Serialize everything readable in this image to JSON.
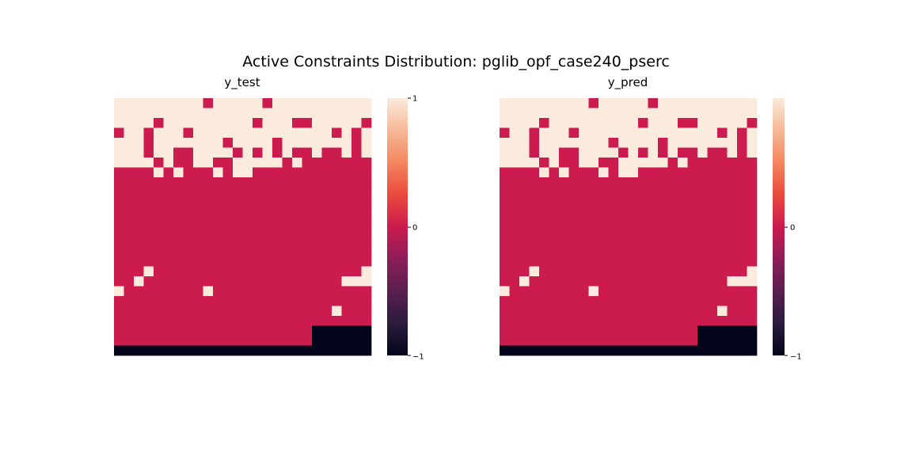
{
  "figure": {
    "title": "Active Constraints Distribution: pglib_opf_case240_pserc"
  },
  "chart_data": [
    {
      "type": "heatmap",
      "title": "y_test",
      "xlabel": "",
      "ylabel": "",
      "value_range": [
        -1,
        1
      ],
      "colorbar_ticks": [
        "1",
        "0",
        "−1"
      ],
      "colormap": "rocket",
      "grid": [
        [
          1,
          1,
          1,
          1,
          1,
          1,
          1,
          1,
          1,
          0,
          1,
          1,
          1,
          1,
          1,
          0,
          1,
          1,
          1,
          1,
          1,
          1,
          1,
          1,
          1,
          1
        ],
        [
          1,
          1,
          1,
          1,
          1,
          1,
          1,
          1,
          1,
          1,
          1,
          1,
          1,
          1,
          1,
          1,
          1,
          1,
          1,
          1,
          1,
          1,
          1,
          1,
          1,
          1
        ],
        [
          1,
          1,
          1,
          1,
          0,
          1,
          1,
          1,
          1,
          1,
          1,
          1,
          1,
          1,
          0,
          1,
          1,
          1,
          0,
          0,
          1,
          1,
          1,
          1,
          1,
          0
        ],
        [
          0,
          1,
          1,
          0,
          1,
          1,
          1,
          0,
          1,
          1,
          1,
          1,
          1,
          1,
          1,
          1,
          1,
          1,
          1,
          1,
          1,
          1,
          0,
          1,
          0,
          1
        ],
        [
          1,
          1,
          1,
          0,
          1,
          1,
          1,
          1,
          1,
          1,
          1,
          0,
          1,
          1,
          1,
          1,
          0,
          1,
          1,
          1,
          1,
          1,
          1,
          1,
          0,
          1
        ],
        [
          1,
          1,
          1,
          0,
          1,
          1,
          0,
          0,
          1,
          1,
          1,
          1,
          0,
          1,
          0,
          1,
          0,
          1,
          0,
          0,
          1,
          0,
          0,
          1,
          0,
          1
        ],
        [
          1,
          1,
          1,
          1,
          0,
          1,
          0,
          0,
          1,
          1,
          0,
          0,
          1,
          1,
          1,
          1,
          1,
          0,
          1,
          0,
          0,
          0,
          0,
          0,
          0,
          0
        ],
        [
          0,
          0,
          0,
          0,
          1,
          0,
          1,
          0,
          0,
          0,
          1,
          0,
          1,
          1,
          0,
          0,
          0,
          0,
          0,
          0,
          0,
          0,
          0,
          0,
          0,
          0
        ],
        [
          0,
          0,
          0,
          0,
          0,
          0,
          0,
          0,
          0,
          0,
          0,
          0,
          0,
          0,
          0,
          0,
          0,
          0,
          0,
          0,
          0,
          0,
          0,
          0,
          0,
          0
        ],
        [
          0,
          0,
          0,
          0,
          0,
          0,
          0,
          0,
          0,
          0,
          0,
          0,
          0,
          0,
          0,
          0,
          0,
          0,
          0,
          0,
          0,
          0,
          0,
          0,
          0,
          0
        ],
        [
          0,
          0,
          0,
          0,
          0,
          0,
          0,
          0,
          0,
          0,
          0,
          0,
          0,
          0,
          0,
          0,
          0,
          0,
          0,
          0,
          0,
          0,
          0,
          0,
          0,
          0
        ],
        [
          0,
          0,
          0,
          0,
          0,
          0,
          0,
          0,
          0,
          0,
          0,
          0,
          0,
          0,
          0,
          0,
          0,
          0,
          0,
          0,
          0,
          0,
          0,
          0,
          0,
          0
        ],
        [
          0,
          0,
          0,
          0,
          0,
          0,
          0,
          0,
          0,
          0,
          0,
          0,
          0,
          0,
          0,
          0,
          0,
          0,
          0,
          0,
          0,
          0,
          0,
          0,
          0,
          0
        ],
        [
          0,
          0,
          0,
          0,
          0,
          0,
          0,
          0,
          0,
          0,
          0,
          0,
          0,
          0,
          0,
          0,
          0,
          0,
          0,
          0,
          0,
          0,
          0,
          0,
          0,
          0
        ],
        [
          0,
          0,
          0,
          0,
          0,
          0,
          0,
          0,
          0,
          0,
          0,
          0,
          0,
          0,
          0,
          0,
          0,
          0,
          0,
          0,
          0,
          0,
          0,
          0,
          0,
          0
        ],
        [
          0,
          0,
          0,
          0,
          0,
          0,
          0,
          0,
          0,
          0,
          0,
          0,
          0,
          0,
          0,
          0,
          0,
          0,
          0,
          0,
          0,
          0,
          0,
          0,
          0,
          0
        ],
        [
          0,
          0,
          0,
          0,
          0,
          0,
          0,
          0,
          0,
          0,
          0,
          0,
          0,
          0,
          0,
          0,
          0,
          0,
          0,
          0,
          0,
          0,
          0,
          0,
          0,
          0
        ],
        [
          0,
          0,
          0,
          1,
          0,
          0,
          0,
          0,
          0,
          0,
          0,
          0,
          0,
          0,
          0,
          0,
          0,
          0,
          0,
          0,
          0,
          0,
          0,
          0,
          0,
          1
        ],
        [
          0,
          0,
          1,
          0,
          0,
          0,
          0,
          0,
          0,
          0,
          0,
          0,
          0,
          0,
          0,
          0,
          0,
          0,
          0,
          0,
          0,
          0,
          0,
          1,
          1,
          1
        ],
        [
          1,
          0,
          0,
          0,
          0,
          0,
          0,
          0,
          0,
          1,
          0,
          0,
          0,
          0,
          0,
          0,
          0,
          0,
          0,
          0,
          0,
          0,
          0,
          0,
          0,
          0
        ],
        [
          0,
          0,
          0,
          0,
          0,
          0,
          0,
          0,
          0,
          0,
          0,
          0,
          0,
          0,
          0,
          0,
          0,
          0,
          0,
          0,
          0,
          0,
          0,
          0,
          0,
          0
        ],
        [
          0,
          0,
          0,
          0,
          0,
          0,
          0,
          0,
          0,
          0,
          0,
          0,
          0,
          0,
          0,
          0,
          0,
          0,
          0,
          0,
          0,
          0,
          1,
          0,
          0,
          0
        ],
        [
          0,
          0,
          0,
          0,
          0,
          0,
          0,
          0,
          0,
          0,
          0,
          0,
          0,
          0,
          0,
          0,
          0,
          0,
          0,
          0,
          0,
          0,
          0,
          0,
          0,
          0
        ],
        [
          0,
          0,
          0,
          0,
          0,
          0,
          0,
          0,
          0,
          0,
          0,
          0,
          0,
          0,
          0,
          0,
          0,
          0,
          0,
          0,
          -1,
          -1,
          -1,
          -1,
          -1,
          -1
        ],
        [
          0,
          0,
          0,
          0,
          0,
          0,
          0,
          0,
          0,
          0,
          0,
          0,
          0,
          0,
          0,
          0,
          0,
          0,
          0,
          0,
          -1,
          -1,
          -1,
          -1,
          -1,
          -1
        ],
        [
          -1,
          -1,
          -1,
          -1,
          -1,
          -1,
          -1,
          -1,
          -1,
          -1,
          -1,
          -1,
          -1,
          -1,
          -1,
          -1,
          -1,
          -1,
          -1,
          -1,
          -1,
          -1,
          -1,
          -1,
          -1,
          -1
        ]
      ]
    },
    {
      "type": "heatmap",
      "title": "y_pred",
      "xlabel": "",
      "ylabel": "",
      "value_range": [
        -1,
        1
      ],
      "colorbar_ticks": [
        "0",
        "−1"
      ],
      "colormap": "rocket",
      "grid": [
        [
          1,
          1,
          1,
          1,
          1,
          1,
          1,
          1,
          1,
          0,
          1,
          1,
          1,
          1,
          1,
          0,
          1,
          1,
          1,
          1,
          1,
          1,
          1,
          1,
          1,
          1
        ],
        [
          1,
          1,
          1,
          1,
          1,
          1,
          1,
          1,
          1,
          1,
          1,
          1,
          1,
          1,
          1,
          1,
          1,
          1,
          1,
          1,
          1,
          1,
          1,
          1,
          1,
          1
        ],
        [
          1,
          1,
          1,
          1,
          0,
          1,
          1,
          1,
          1,
          1,
          1,
          1,
          1,
          1,
          0,
          1,
          1,
          1,
          0,
          0,
          1,
          1,
          1,
          1,
          1,
          0
        ],
        [
          0,
          1,
          1,
          0,
          1,
          1,
          1,
          0,
          1,
          1,
          1,
          1,
          1,
          1,
          1,
          1,
          1,
          1,
          1,
          1,
          1,
          1,
          0,
          1,
          0,
          1
        ],
        [
          1,
          1,
          1,
          0,
          1,
          1,
          1,
          1,
          1,
          1,
          1,
          0,
          1,
          1,
          1,
          1,
          0,
          1,
          1,
          1,
          1,
          1,
          1,
          1,
          0,
          1
        ],
        [
          1,
          1,
          1,
          0,
          1,
          1,
          0,
          0,
          1,
          1,
          1,
          1,
          0,
          1,
          0,
          1,
          0,
          1,
          0,
          0,
          1,
          0,
          0,
          1,
          0,
          1
        ],
        [
          1,
          1,
          1,
          1,
          0,
          1,
          0,
          0,
          1,
          1,
          0,
          0,
          1,
          1,
          1,
          1,
          1,
          0,
          1,
          0,
          0,
          0,
          0,
          0,
          0,
          0
        ],
        [
          0,
          0,
          0,
          0,
          1,
          0,
          1,
          0,
          0,
          0,
          1,
          0,
          1,
          1,
          0,
          0,
          0,
          0,
          0,
          0,
          0,
          0,
          0,
          0,
          0,
          0
        ],
        [
          0,
          0,
          0,
          0,
          0,
          0,
          0,
          0,
          0,
          0,
          0,
          0,
          0,
          0,
          0,
          0,
          0,
          0,
          0,
          0,
          0,
          0,
          0,
          0,
          0,
          0
        ],
        [
          0,
          0,
          0,
          0,
          0,
          0,
          0,
          0,
          0,
          0,
          0,
          0,
          0,
          0,
          0,
          0,
          0,
          0,
          0,
          0,
          0,
          0,
          0,
          0,
          0,
          0
        ],
        [
          0,
          0,
          0,
          0,
          0,
          0,
          0,
          0,
          0,
          0,
          0,
          0,
          0,
          0,
          0,
          0,
          0,
          0,
          0,
          0,
          0,
          0,
          0,
          0,
          0,
          0
        ],
        [
          0,
          0,
          0,
          0,
          0,
          0,
          0,
          0,
          0,
          0,
          0,
          0,
          0,
          0,
          0,
          0,
          0,
          0,
          0,
          0,
          0,
          0,
          0,
          0,
          0,
          0
        ],
        [
          0,
          0,
          0,
          0,
          0,
          0,
          0,
          0,
          0,
          0,
          0,
          0,
          0,
          0,
          0,
          0,
          0,
          0,
          0,
          0,
          0,
          0,
          0,
          0,
          0,
          0
        ],
        [
          0,
          0,
          0,
          0,
          0,
          0,
          0,
          0,
          0,
          0,
          0,
          0,
          0,
          0,
          0,
          0,
          0,
          0,
          0,
          0,
          0,
          0,
          0,
          0,
          0,
          0
        ],
        [
          0,
          0,
          0,
          0,
          0,
          0,
          0,
          0,
          0,
          0,
          0,
          0,
          0,
          0,
          0,
          0,
          0,
          0,
          0,
          0,
          0,
          0,
          0,
          0,
          0,
          0
        ],
        [
          0,
          0,
          0,
          0,
          0,
          0,
          0,
          0,
          0,
          0,
          0,
          0,
          0,
          0,
          0,
          0,
          0,
          0,
          0,
          0,
          0,
          0,
          0,
          0,
          0,
          0
        ],
        [
          0,
          0,
          0,
          0,
          0,
          0,
          0,
          0,
          0,
          0,
          0,
          0,
          0,
          0,
          0,
          0,
          0,
          0,
          0,
          0,
          0,
          0,
          0,
          0,
          0,
          0
        ],
        [
          0,
          0,
          0,
          1,
          0,
          0,
          0,
          0,
          0,
          0,
          0,
          0,
          0,
          0,
          0,
          0,
          0,
          0,
          0,
          0,
          0,
          0,
          0,
          0,
          0,
          1
        ],
        [
          0,
          0,
          1,
          0,
          0,
          0,
          0,
          0,
          0,
          0,
          0,
          0,
          0,
          0,
          0,
          0,
          0,
          0,
          0,
          0,
          0,
          0,
          0,
          1,
          1,
          1
        ],
        [
          1,
          0,
          0,
          0,
          0,
          0,
          0,
          0,
          0,
          1,
          0,
          0,
          0,
          0,
          0,
          0,
          0,
          0,
          0,
          0,
          0,
          0,
          0,
          0,
          0,
          0
        ],
        [
          0,
          0,
          0,
          0,
          0,
          0,
          0,
          0,
          0,
          0,
          0,
          0,
          0,
          0,
          0,
          0,
          0,
          0,
          0,
          0,
          0,
          0,
          0,
          0,
          0,
          0
        ],
        [
          0,
          0,
          0,
          0,
          0,
          0,
          0,
          0,
          0,
          0,
          0,
          0,
          0,
          0,
          0,
          0,
          0,
          0,
          0,
          0,
          0,
          0,
          1,
          0,
          0,
          0
        ],
        [
          0,
          0,
          0,
          0,
          0,
          0,
          0,
          0,
          0,
          0,
          0,
          0,
          0,
          0,
          0,
          0,
          0,
          0,
          0,
          0,
          0,
          0,
          0,
          0,
          0,
          0
        ],
        [
          0,
          0,
          0,
          0,
          0,
          0,
          0,
          0,
          0,
          0,
          0,
          0,
          0,
          0,
          0,
          0,
          0,
          0,
          0,
          0,
          -1,
          -1,
          -1,
          -1,
          -1,
          -1
        ],
        [
          0,
          0,
          0,
          0,
          0,
          0,
          0,
          0,
          0,
          0,
          0,
          0,
          0,
          0,
          0,
          0,
          0,
          0,
          0,
          0,
          -1,
          -1,
          -1,
          -1,
          -1,
          -1
        ],
        [
          -1,
          -1,
          -1,
          -1,
          -1,
          -1,
          -1,
          -1,
          -1,
          -1,
          -1,
          -1,
          -1,
          -1,
          -1,
          -1,
          -1,
          -1,
          -1,
          -1,
          -1,
          -1,
          -1,
          -1,
          -1,
          -1
        ]
      ]
    }
  ]
}
